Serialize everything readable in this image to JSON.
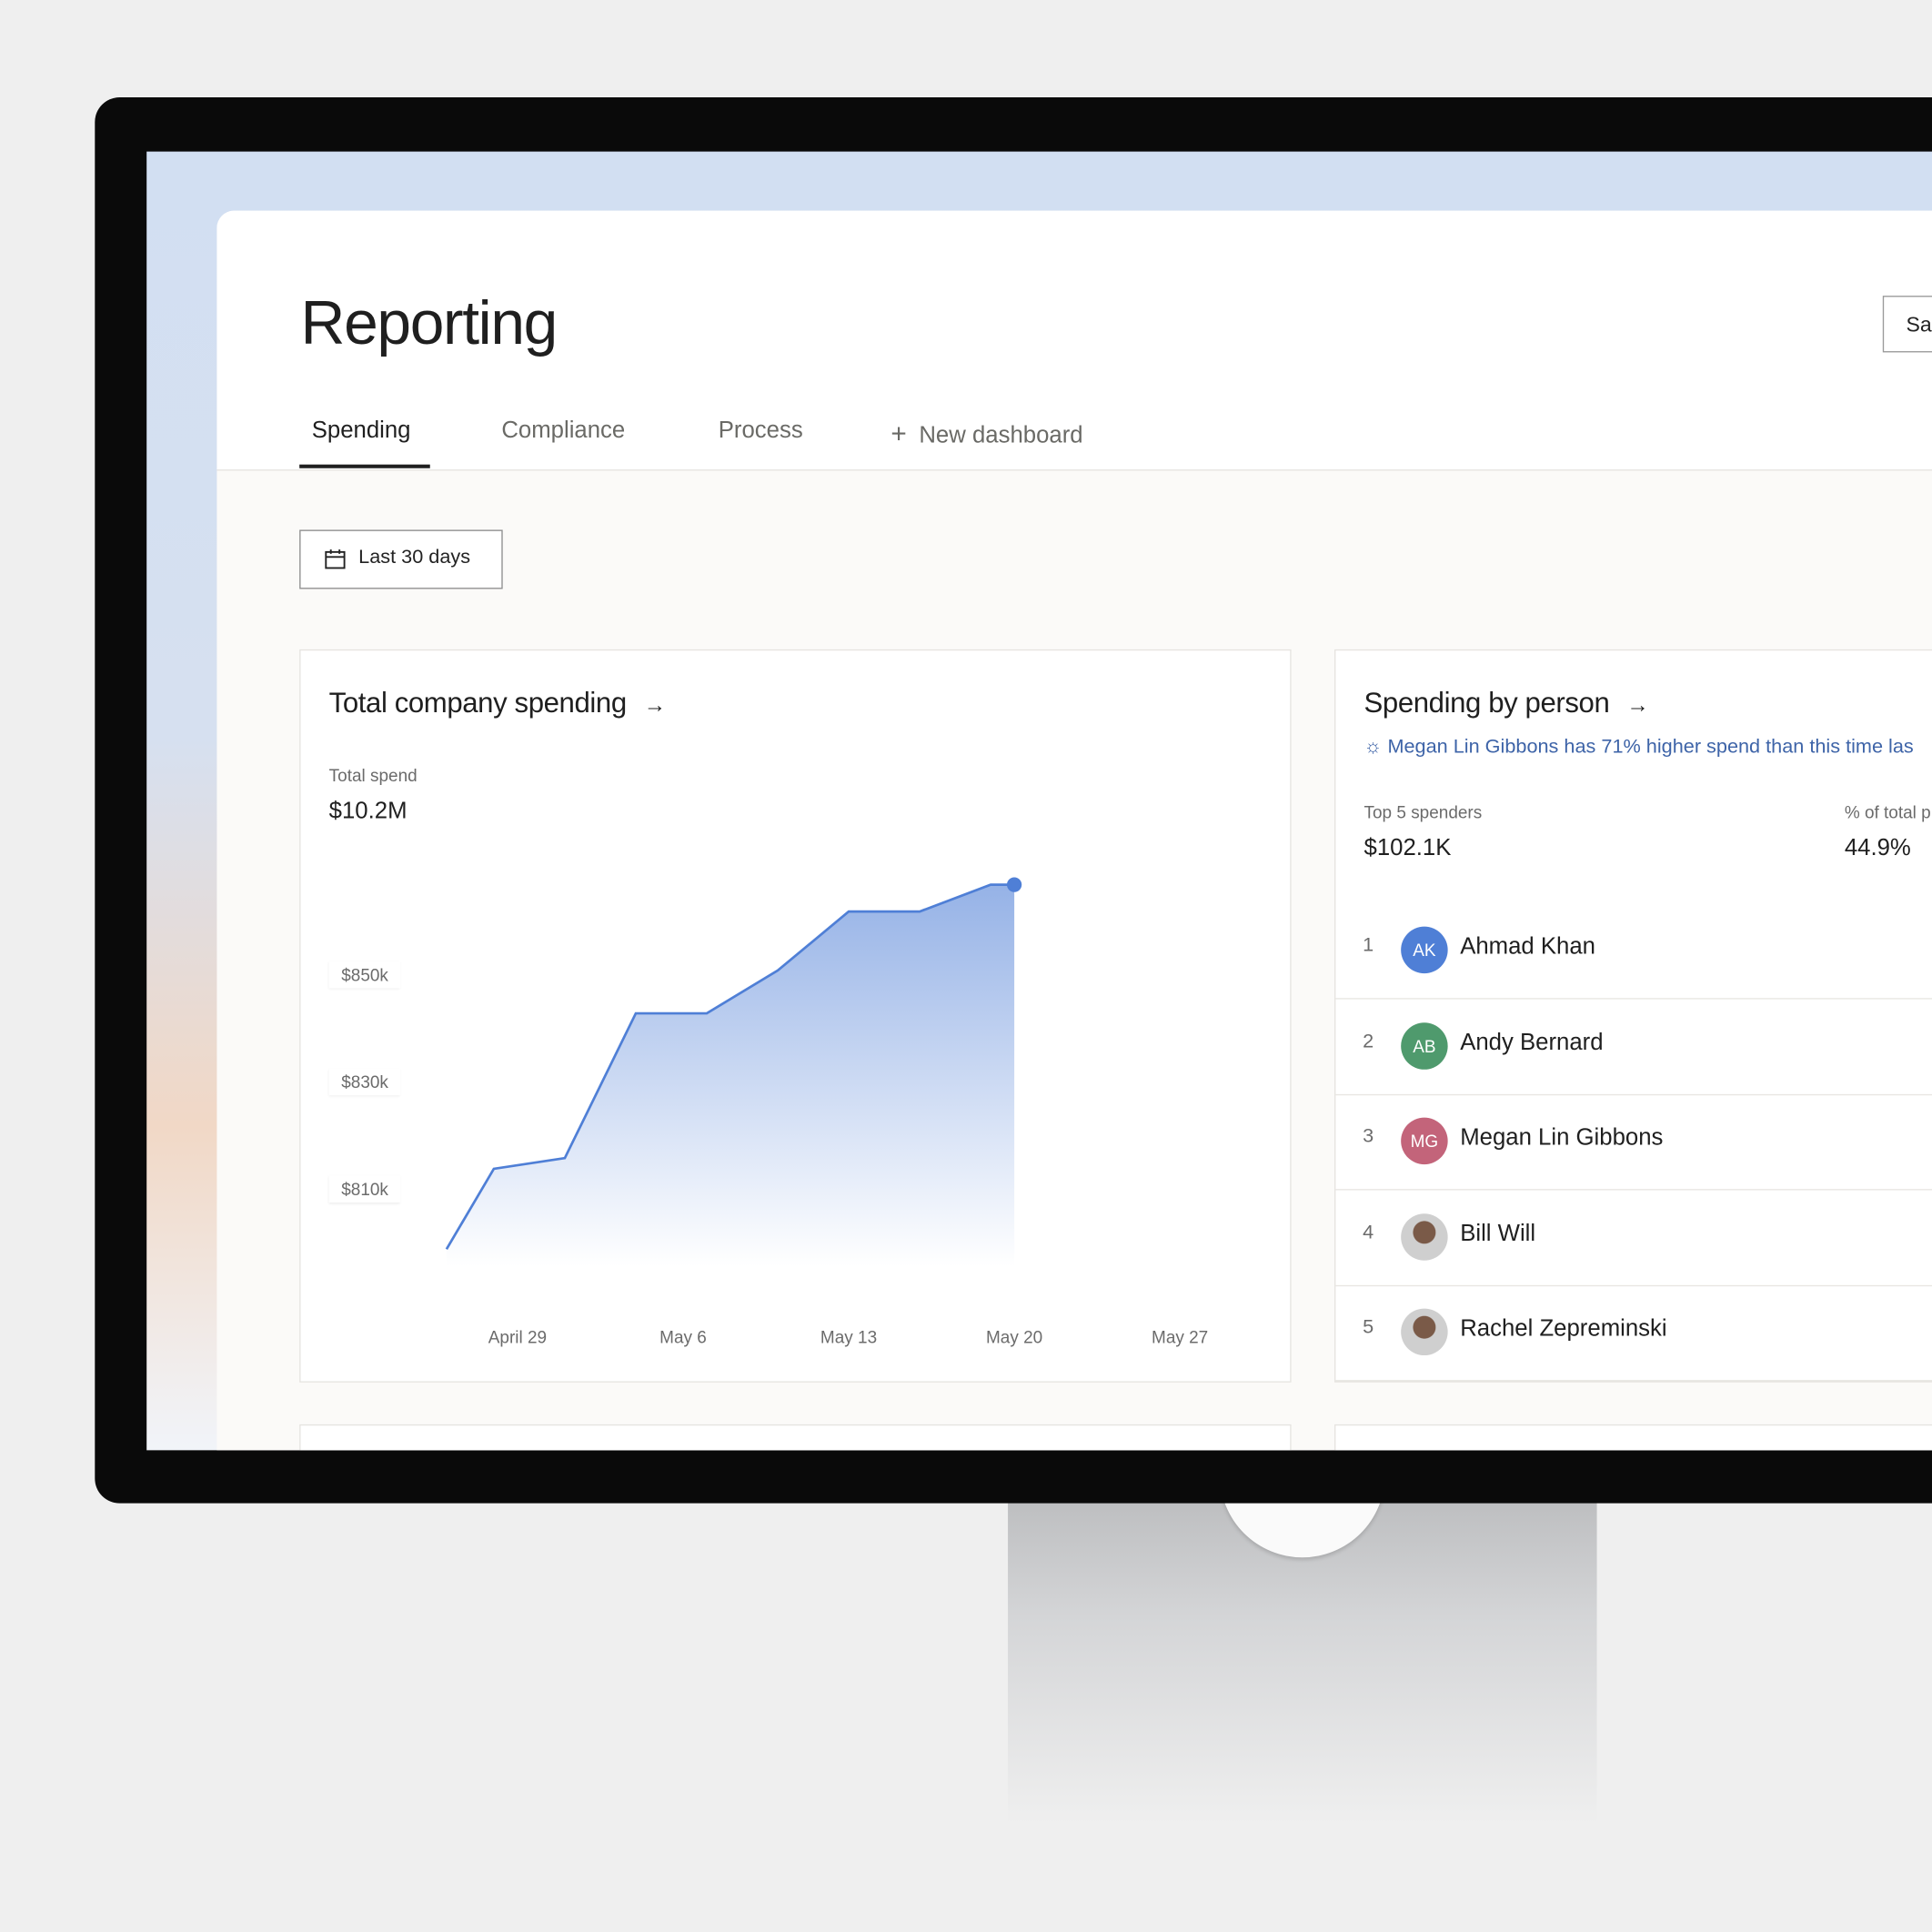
{
  "header": {
    "title": "Reporting",
    "save_button": "Sa"
  },
  "tabs": [
    {
      "label": "Spending",
      "active": true
    },
    {
      "label": "Compliance"
    },
    {
      "label": "Process"
    },
    {
      "label": "New dashboard",
      "icon": "plus-icon"
    }
  ],
  "date_filter": {
    "label": "Last 30 days",
    "icon": "calendar-icon"
  },
  "spending_card": {
    "title": "Total company spending",
    "icon": "arrow-right-icon",
    "total_label": "Total spend",
    "total_value": "$10.2M"
  },
  "person_card": {
    "title": "Spending by person",
    "icon": "arrow-right-icon",
    "insight": "Megan Lin Gibbons has 71% higher spend than this time las",
    "insight_icon": "sparkle-icon",
    "top_label": "Top 5 spenders",
    "top_value": "$102.1K",
    "pct_label": "% of total p",
    "pct_value": "44.9%",
    "people": [
      {
        "rank": "1",
        "initials": "AK",
        "name": "Ahmad Khan",
        "color": "#4f7fd6"
      },
      {
        "rank": "2",
        "initials": "AB",
        "name": "Andy Bernard",
        "color": "#4f9a6d"
      },
      {
        "rank": "3",
        "initials": "MG",
        "name": "Megan Lin Gibbons",
        "color": "#c3647a"
      },
      {
        "rank": "4",
        "initials": "",
        "name": "Bill Will",
        "color": "#9c8f86"
      },
      {
        "rank": "5",
        "initials": "",
        "name": "Rachel Zepreminski",
        "color": "#8a7c72"
      }
    ]
  },
  "chart_data": {
    "type": "area",
    "line_color": "#4f7fd6",
    "x": [
      "2024-04-26",
      "2024-04-28",
      "2024-05-01",
      "2024-05-04",
      "2024-05-07",
      "2024-05-10",
      "2024-05-13",
      "2024-05-16",
      "2024-05-19",
      "2024-05-20"
    ],
    "values": [
      799,
      814,
      816,
      843,
      843,
      851,
      862,
      862,
      867,
      867
    ],
    "y_unit": "$k",
    "yticks": [
      "$850k",
      "$830k",
      "$810k"
    ],
    "ytick_values": [
      850,
      830,
      810
    ],
    "xticks": [
      "April 29",
      "May 6",
      "May 13",
      "May 20",
      "May 27"
    ],
    "xtick_dates": [
      "2024-04-29",
      "2024-05-06",
      "2024-05-13",
      "2024-05-20",
      "2024-05-27"
    ],
    "grid": false
  }
}
